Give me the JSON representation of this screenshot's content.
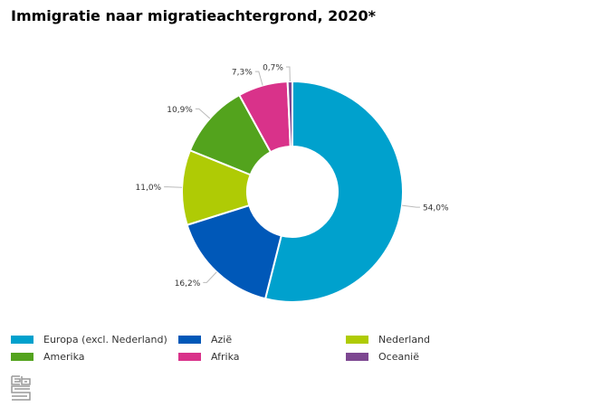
{
  "chart_data": {
    "type": "pie",
    "title": "Immigratie naar migratieachtergrond, 2020*",
    "donut": true,
    "unit": "%",
    "legend_position": "bottom",
    "series": [
      {
        "name": "Europa (excl. Nederland)",
        "value": 54.0,
        "label": "54,0%",
        "color": "#00a1cd"
      },
      {
        "name": "Azië",
        "value": 16.2,
        "label": "16,2%",
        "color": "#0058b8"
      },
      {
        "name": "Nederland",
        "value": 11.0,
        "label": "11,0%",
        "color": "#afcb05"
      },
      {
        "name": "Amerika",
        "value": 10.9,
        "label": "10,9%",
        "color": "#53a31d"
      },
      {
        "name": "Afrika",
        "value": 7.3,
        "label": "7,3%",
        "color": "#d9328a"
      },
      {
        "name": "Oceanië",
        "value": 0.7,
        "label": "0,7%",
        "color": "#7d4791"
      }
    ]
  },
  "logo": "cbs"
}
